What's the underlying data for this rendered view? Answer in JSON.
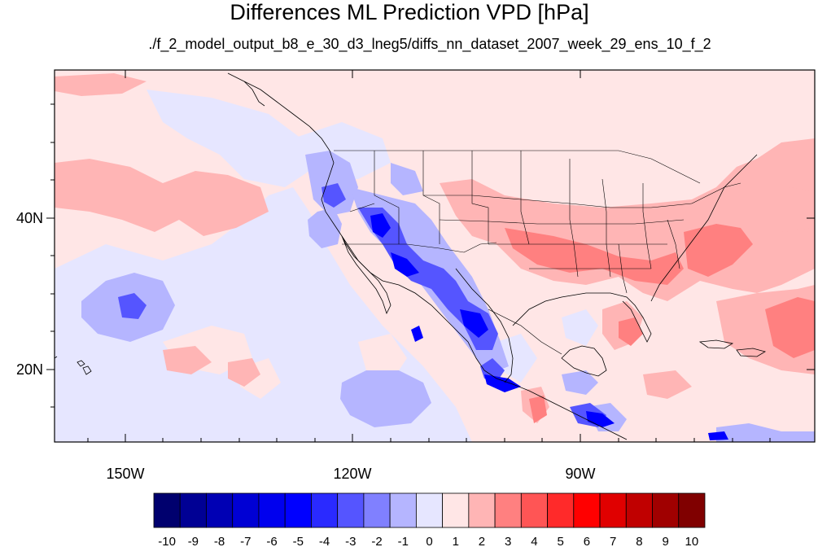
{
  "figure": {
    "title": "Differences ML Prediction VPD [hPa]",
    "subtitle": "./f_2_model_output_b8_e_30_d3_lneg5/diffs_nn_dataset_2007_week_29_ens_10_f_2"
  },
  "map": {
    "projection": "cylindrical equidistant",
    "lon_range": [
      -160,
      -62
    ],
    "lat_range": [
      11,
      59
    ],
    "lon_tick_labels": [
      "150W",
      "120W",
      "90W"
    ],
    "lon_tick_values": [
      -150,
      -120,
      -90
    ],
    "lat_tick_labels": [
      "40N",
      "20N"
    ],
    "lat_tick_values": [
      40,
      20
    ],
    "boundaries": "coastlines, country and US state borders"
  },
  "colorbar": {
    "orientation": "horizontal",
    "labels": [
      "-10",
      "-9",
      "-8",
      "-7",
      "-6",
      "-5",
      "-4",
      "-3",
      "-2",
      "-1",
      "0",
      "1",
      "2",
      "3",
      "4",
      "5",
      "6",
      "7",
      "8",
      "9",
      "10"
    ],
    "colors": [
      "#00006e",
      "#000094",
      "#0000b4",
      "#0000d4",
      "#0000ee",
      "#0000ff",
      "#2a2aff",
      "#5555ff",
      "#8080ff",
      "#b5b5ff",
      "#e6e6ff",
      "#ffe6e6",
      "#ffb5b5",
      "#ff8080",
      "#ff5555",
      "#ff2a2a",
      "#ff0000",
      "#e00000",
      "#c00000",
      "#a00000",
      "#800000"
    ]
  },
  "colors": {
    "background_positive": "#ffe6e6",
    "ocean_weak_negative": "#e6e6ff",
    "frame": "#000000"
  }
}
